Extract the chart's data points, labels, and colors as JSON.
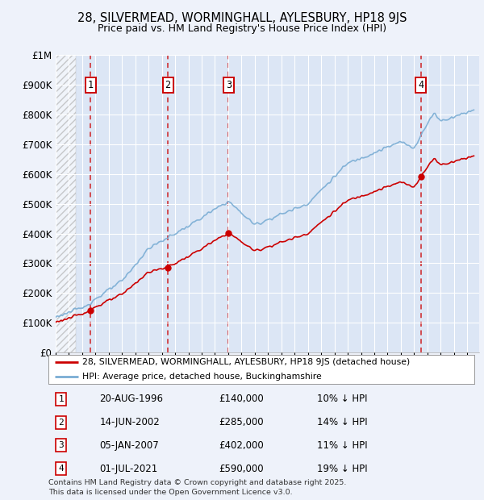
{
  "title": "28, SILVERMEAD, WORMINGHALL, AYLESBURY, HP18 9JS",
  "subtitle": "Price paid vs. HM Land Registry's House Price Index (HPI)",
  "bg_color": "#eef2fa",
  "plot_bg_color": "#dce6f5",
  "grid_color": "#ffffff",
  "hpi_color": "#7aadd4",
  "price_color": "#cc0000",
  "marker_color": "#cc0000",
  "vline_color": "#cc0000",
  "box_color": "#cc0000",
  "hatch_start_year": 1994,
  "hatch_end_year": 1995.5,
  "ylim": [
    0,
    1000000
  ],
  "yticks": [
    0,
    100000,
    200000,
    300000,
    400000,
    500000,
    600000,
    700000,
    800000,
    900000,
    1000000
  ],
  "ytick_labels": [
    "£0",
    "£100K",
    "£200K",
    "£300K",
    "£400K",
    "£500K",
    "£600K",
    "£700K",
    "£800K",
    "£900K",
    "£1M"
  ],
  "trans_years": [
    1996.64,
    2002.45,
    2007.03,
    2021.5
  ],
  "trans_prices": [
    140000,
    285000,
    402000,
    590000
  ],
  "trans_labels": [
    "1",
    "2",
    "3",
    "4"
  ],
  "legend_entries": [
    "28, SILVERMEAD, WORMINGHALL, AYLESBURY, HP18 9JS (detached house)",
    "HPI: Average price, detached house, Buckinghamshire"
  ],
  "dates_str": [
    "20-AUG-1996",
    "14-JUN-2002",
    "05-JAN-2007",
    "01-JUL-2021"
  ],
  "prices_str": [
    "£140,000",
    "£285,000",
    "£402,000",
    "£590,000"
  ],
  "pcts_str": [
    "10% ↓ HPI",
    "14% ↓ HPI",
    "11% ↓ HPI",
    "19% ↓ HPI"
  ],
  "footer": "Contains HM Land Registry data © Crown copyright and database right 2025.\nThis data is licensed under the Open Government Licence v3.0.",
  "xlim_start": 1994.0,
  "xlim_end": 2025.9
}
